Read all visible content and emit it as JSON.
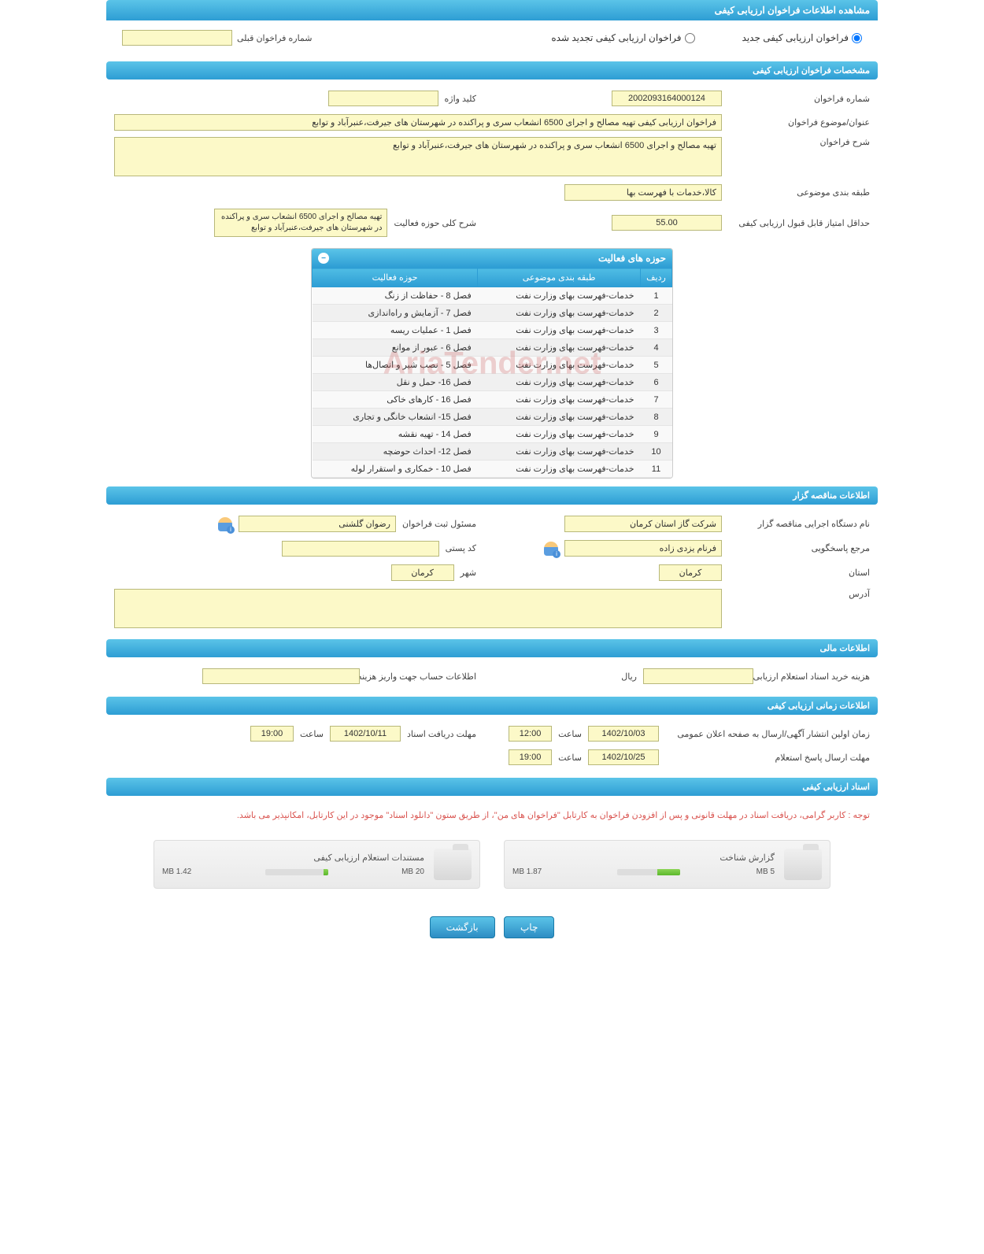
{
  "colors": {
    "header_grad_top": "#5bc4e8",
    "header_grad_bottom": "#2d9dd4",
    "yellow_bg": "#fcf9c8",
    "yellow_border": "#b8b87a",
    "red_text": "#d9534f",
    "progress_green": "#5cb82d"
  },
  "page_title": "مشاهده اطلاعات فراخوان ارزیابی کیفی",
  "radio": {
    "new": "فراخوان ارزیابی کیفی جدید",
    "renewed": "فراخوان ارزیابی کیفی تجدید شده",
    "prev_label": "شماره فراخوان قبلی",
    "prev_value": ""
  },
  "spec_header": "مشخصات فراخوان ارزیابی کیفی",
  "spec": {
    "number_label": "شماره فراخوان",
    "number_value": "2002093164000124",
    "keyword_label": "کلید واژه",
    "keyword_value": "",
    "title_label": "عنوان/موضوع فراخوان",
    "title_value": "فراخوان ارزیابی کیفی تهیه مصالح و اجرای 6500 انشعاب سری و پراکنده در شهرستان های جیرفت،عنبرآباد و توابع",
    "desc_label": "شرح فراخوان",
    "desc_value": "تهیه مصالح و اجرای 6500 انشعاب سری و پراکنده در شهرستان های جیرفت،عنبرآباد و توابع",
    "category_label": "طبقه بندی موضوعی",
    "category_value": "کالا،خدمات با فهرست بها",
    "scope_label": "شرح کلی حوزه فعالیت",
    "scope_value": "تهیه مصالح و اجرای 6500 انشعاب سری و پراکنده در شهرستان های جیرفت،عنبرآباد و توابع",
    "min_score_label": "حداقل امتیاز قابل قبول ارزیابی کیفی",
    "min_score_value": "55.00"
  },
  "activity": {
    "header": "حوزه های فعالیت",
    "cols": {
      "row": "ردیف",
      "cat": "طبقه بندی موضوعی",
      "area": "حوزه فعالیت"
    },
    "rows": [
      {
        "n": "1",
        "cat": "خدمات-فهرست بهای وزارت نفت",
        "area": "فصل 8 - حفاظت از زنگ"
      },
      {
        "n": "2",
        "cat": "خدمات-فهرست بهای وزارت نفت",
        "area": "فصل 7 - آزمایش و راه‌اندازی"
      },
      {
        "n": "3",
        "cat": "خدمات-فهرست بهای وزارت نفت",
        "area": "فصل 1 - عملیات ریسه"
      },
      {
        "n": "4",
        "cat": "خدمات-فهرست بهای وزارت نفت",
        "area": "فصل 6 - عبور از موانع"
      },
      {
        "n": "5",
        "cat": "خدمات-فهرست بهای وزارت نفت",
        "area": "فصل 5 - نصب شیر و اتصال‌ها"
      },
      {
        "n": "6",
        "cat": "خدمات-فهرست بهای وزارت نفت",
        "area": "فصل 16- حمل و نقل"
      },
      {
        "n": "7",
        "cat": "خدمات-فهرست بهای وزارت نفت",
        "area": "فصل 16 - کارهای خاکی"
      },
      {
        "n": "8",
        "cat": "خدمات-فهرست بهای وزارت نفت",
        "area": "فصل 15- انشعاب خانگی و تجاری"
      },
      {
        "n": "9",
        "cat": "خدمات-فهرست بهای وزارت نفت",
        "area": "فصل 14 - تهیه نقشه"
      },
      {
        "n": "10",
        "cat": "خدمات-فهرست بهای وزارت نفت",
        "area": "فصل 12- احداث حوضچه"
      },
      {
        "n": "11",
        "cat": "خدمات-فهرست بهای وزارت نفت",
        "area": "فصل 10 - خمکاری و استقرار لوله"
      }
    ]
  },
  "tenderer_header": "اطلاعات مناقصه گزار",
  "tenderer": {
    "org_label": "نام دستگاه اجرایی مناقصه گزار",
    "org_value": "شرکت گاز استان کرمان",
    "registrar_label": "مسئول ثبت فراخوان",
    "registrar_value": "رضوان گلشنی",
    "contact_label": "مرجع پاسخگویی",
    "contact_value": "فرنام یزدی زاده",
    "postal_label": "کد پستی",
    "postal_value": "",
    "province_label": "استان",
    "province_value": "کرمان",
    "city_label": "شهر",
    "city_value": "کرمان",
    "address_label": "آدرس",
    "address_value": ""
  },
  "finance_header": "اطلاعات مالی",
  "finance": {
    "doc_cost_label": "هزینه خرید اسناد استعلام ارزیابی کیفی",
    "doc_cost_value": "",
    "currency": "ریال",
    "account_label": "اطلاعات حساب جهت واریز هزینه خرید اسناد",
    "account_value": ""
  },
  "time_header": "اطلاعات زمانی ارزیابی کیفی",
  "time": {
    "first_pub_label": "زمان اولین انتشار آگهی/ارسال به صفحه اعلان عمومی",
    "first_pub_date": "1402/10/03",
    "first_pub_time": "12:00",
    "receive_label": "مهلت دریافت اسناد",
    "receive_date": "1402/10/11",
    "receive_time": "19:00",
    "reply_label": "مهلت ارسال پاسخ استعلام",
    "reply_date": "1402/10/25",
    "reply_time": "19:00",
    "hour_label": "ساعت"
  },
  "docs_header": "اسناد ارزیابی کیفی",
  "notice": "توجه : کاربر گرامی، دریافت اسناد در مهلت قانونی و پس از افزودن فراخوان به کارتابل \"فراخوان های من\"، از طریق ستون \"دانلود اسناد\" موجود در این کارتابل، امکانپذیر می باشد.",
  "docs": {
    "recognition": {
      "title": "گزارش شناخت",
      "used": "1.87 MB",
      "total": "5 MB",
      "pct": 37
    },
    "evidence": {
      "title": "مستندات استعلام ارزیابی کیفی",
      "used": "1.42 MB",
      "total": "20 MB",
      "pct": 7
    }
  },
  "buttons": {
    "print": "چاپ",
    "back": "بازگشت"
  },
  "watermark": "AriaTender.net"
}
